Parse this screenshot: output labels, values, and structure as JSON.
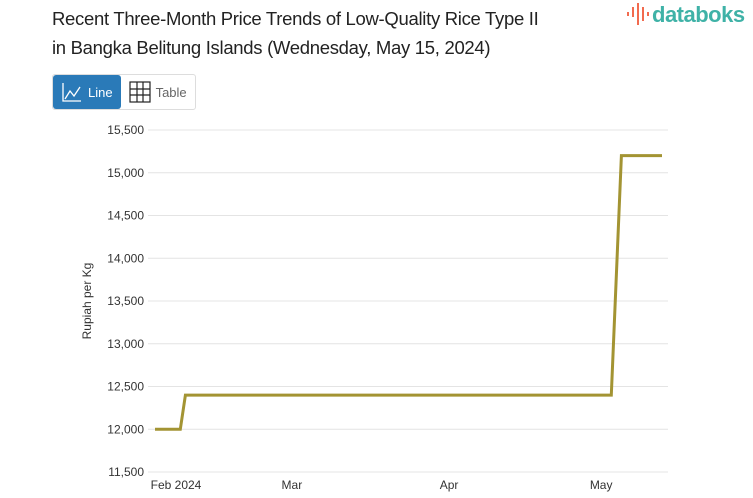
{
  "header": {
    "title_line1": "Recent Three-Month Price Trends of Low-Quality Rice Type II",
    "title_line2": "in Bangka Belitung Islands (Wednesday, May 15, 2024)",
    "logo_text": "databoks"
  },
  "toggle": {
    "line_label": "Line",
    "table_label": "Table",
    "active": "line",
    "icons": [
      "line-chart-icon",
      "table-grid-icon"
    ]
  },
  "colors": {
    "line": "#a39433",
    "accent": "#2a7ab8",
    "logo": "#3fb2a7"
  },
  "chart_data": {
    "type": "line",
    "title": "Recent Three-Month Price Trends of Low-Quality Rice Type II in Bangka Belitung Islands (Wednesday, May 15, 2024)",
    "xlabel": "",
    "ylabel": "Rupiah per Kg",
    "ylim": [
      11500,
      15500
    ],
    "yticks": [
      11500,
      12000,
      12500,
      13000,
      13500,
      14000,
      14500,
      15000,
      15500
    ],
    "ytick_labels": [
      "11,500",
      "12,000",
      "12,500",
      "13,000",
      "13,500",
      "14,000",
      "14,500",
      "15,000",
      "15,500"
    ],
    "xticks": [
      {
        "date": "2024-02-01",
        "label": "Feb 2024"
      },
      {
        "date": "2024-03-01",
        "label": "Mar"
      },
      {
        "date": "2024-04-01",
        "label": "Apr"
      },
      {
        "date": "2024-05-01",
        "label": "May"
      }
    ],
    "grid": true,
    "series": [
      {
        "points": [
          {
            "x": "2024-02-03",
            "y": 12000
          },
          {
            "x": "2024-02-08",
            "y": 12000
          },
          {
            "x": "2024-02-09",
            "y": 12400
          },
          {
            "x": "2024-05-03",
            "y": 12400
          },
          {
            "x": "2024-05-05",
            "y": 15200
          },
          {
            "x": "2024-05-13",
            "y": 15200
          }
        ]
      }
    ]
  }
}
